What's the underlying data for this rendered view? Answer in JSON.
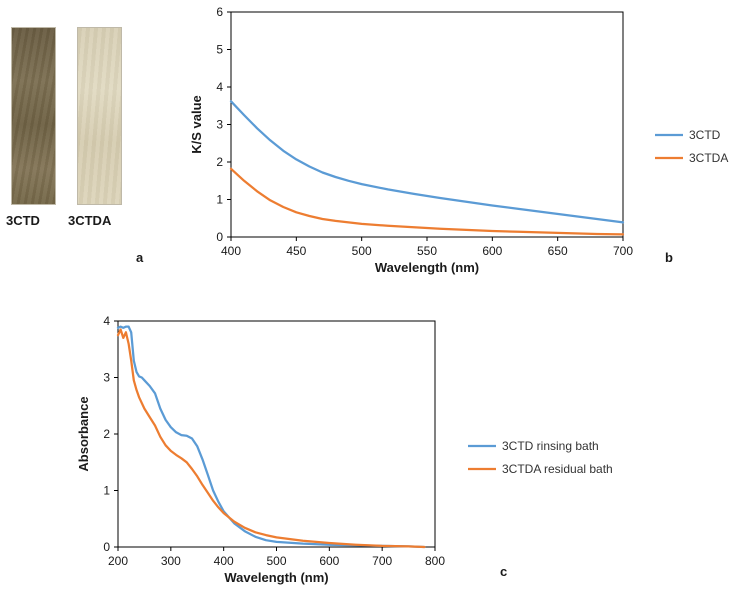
{
  "swatches": {
    "left_label": "3CTD",
    "right_label": "3CTDA",
    "panel_letter": "a"
  },
  "chart_data": [
    {
      "id": "b",
      "type": "line",
      "panel_letter": "b",
      "title": "",
      "xlabel": "Wavelength (nm)",
      "ylabel": "K/S value",
      "xlim": [
        400,
        700
      ],
      "ylim": [
        0,
        6
      ],
      "xticks": [
        400,
        450,
        500,
        550,
        600,
        650,
        700
      ],
      "yticks": [
        0,
        1,
        2,
        3,
        4,
        5,
        6
      ],
      "legend_position": "right",
      "series": [
        {
          "name": "3CTD",
          "color": "#5b9bd5",
          "x": [
            400,
            410,
            420,
            430,
            440,
            450,
            460,
            470,
            480,
            490,
            500,
            520,
            540,
            560,
            580,
            600,
            620,
            640,
            660,
            680,
            700
          ],
          "y": [
            3.62,
            3.25,
            2.9,
            2.58,
            2.3,
            2.07,
            1.88,
            1.72,
            1.6,
            1.5,
            1.41,
            1.27,
            1.15,
            1.04,
            0.94,
            0.84,
            0.75,
            0.66,
            0.57,
            0.48,
            0.39
          ]
        },
        {
          "name": "3CTDA",
          "color": "#ed7d31",
          "x": [
            400,
            410,
            420,
            430,
            440,
            450,
            460,
            470,
            480,
            490,
            500,
            520,
            540,
            560,
            580,
            600,
            620,
            640,
            660,
            680,
            700
          ],
          "y": [
            1.82,
            1.5,
            1.22,
            0.98,
            0.8,
            0.66,
            0.56,
            0.48,
            0.43,
            0.39,
            0.35,
            0.3,
            0.26,
            0.22,
            0.19,
            0.16,
            0.14,
            0.12,
            0.1,
            0.08,
            0.07
          ]
        }
      ]
    },
    {
      "id": "c",
      "type": "line",
      "panel_letter": "c",
      "title": "",
      "xlabel": "Wavelength (nm)",
      "ylabel": "Absorbance",
      "xlim": [
        200,
        800
      ],
      "ylim": [
        0,
        4
      ],
      "xticks": [
        200,
        300,
        400,
        500,
        600,
        700,
        800
      ],
      "yticks": [
        0,
        1,
        2,
        3,
        4
      ],
      "legend_position": "right",
      "series": [
        {
          "name": "3CTD rinsing bath",
          "color": "#5b9bd5",
          "x": [
            200,
            205,
            210,
            215,
            220,
            225,
            230,
            235,
            240,
            245,
            250,
            260,
            270,
            280,
            290,
            300,
            310,
            320,
            330,
            340,
            350,
            360,
            370,
            380,
            390,
            400,
            420,
            440,
            460,
            480,
            500,
            550,
            600,
            650,
            700,
            750,
            780
          ],
          "y": [
            3.88,
            3.9,
            3.88,
            3.9,
            3.9,
            3.8,
            3.3,
            3.1,
            3.02,
            3.0,
            2.95,
            2.85,
            2.72,
            2.45,
            2.25,
            2.12,
            2.03,
            1.98,
            1.97,
            1.92,
            1.78,
            1.55,
            1.28,
            1.0,
            0.8,
            0.63,
            0.42,
            0.28,
            0.18,
            0.12,
            0.09,
            0.06,
            0.04,
            0.03,
            0.02,
            0.01,
            0.0
          ]
        },
        {
          "name": "3CTDA residual bath",
          "color": "#ed7d31",
          "x": [
            200,
            205,
            210,
            215,
            220,
            225,
            230,
            235,
            240,
            250,
            260,
            270,
            280,
            290,
            300,
            310,
            320,
            330,
            340,
            350,
            360,
            370,
            380,
            390,
            400,
            420,
            440,
            460,
            480,
            500,
            550,
            600,
            650,
            700,
            750,
            780
          ],
          "y": [
            3.75,
            3.85,
            3.7,
            3.8,
            3.6,
            3.3,
            2.95,
            2.78,
            2.65,
            2.45,
            2.3,
            2.15,
            1.95,
            1.8,
            1.7,
            1.63,
            1.57,
            1.5,
            1.38,
            1.25,
            1.1,
            0.96,
            0.82,
            0.7,
            0.6,
            0.45,
            0.34,
            0.26,
            0.21,
            0.17,
            0.11,
            0.07,
            0.04,
            0.02,
            0.01,
            0.0
          ]
        }
      ]
    }
  ]
}
